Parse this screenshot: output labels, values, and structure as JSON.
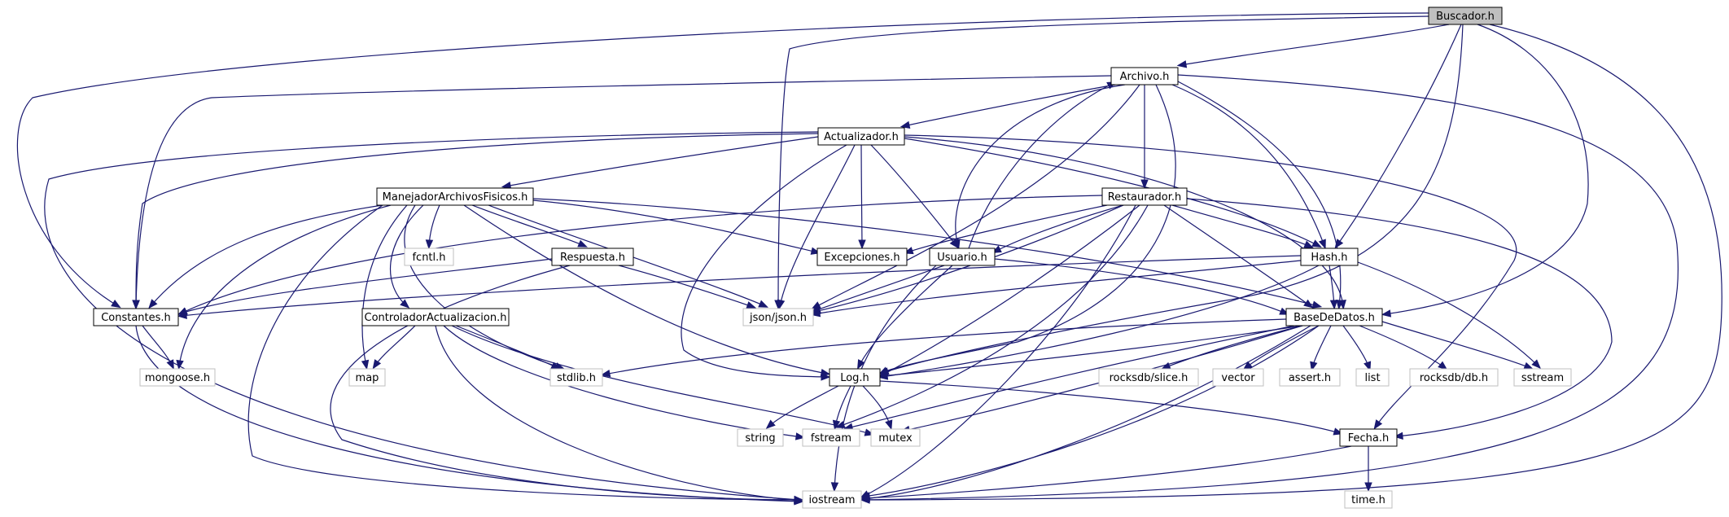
{
  "colors": {
    "edge": "#191970",
    "root_fill": "#bfbfbf",
    "node_border": "#000000",
    "external_border": "#bfbfbf"
  },
  "nodes": {
    "buscador": "Buscador.h",
    "archivo": "Archivo.h",
    "actualizador": "Actualizador.h",
    "manejador": "ManejadorArchivosFisicos.h",
    "restaurador": "Restaurador.h",
    "fcntl": "fcntl.h",
    "respuesta": "Respuesta.h",
    "excepciones": "Excepciones.h",
    "usuario": "Usuario.h",
    "hash": "Hash.h",
    "constantes": "Constantes.h",
    "controlador": "ControladorActualizacion.h",
    "json": "json/json.h",
    "basededatos": "BaseDeDatos.h",
    "mongoose": "mongoose.h",
    "map": "map",
    "stdlib": "stdlib.h",
    "log": "Log.h",
    "rocksdb_slice": "rocksdb/slice.h",
    "vector": "vector",
    "assert": "assert.h",
    "list": "list",
    "rocksdb_db": "rocksdb/db.h",
    "sstream": "sstream",
    "string": "string",
    "fstream": "fstream",
    "mutex": "mutex",
    "fecha": "Fecha.h",
    "iostream": "iostream",
    "time": "time.h"
  }
}
